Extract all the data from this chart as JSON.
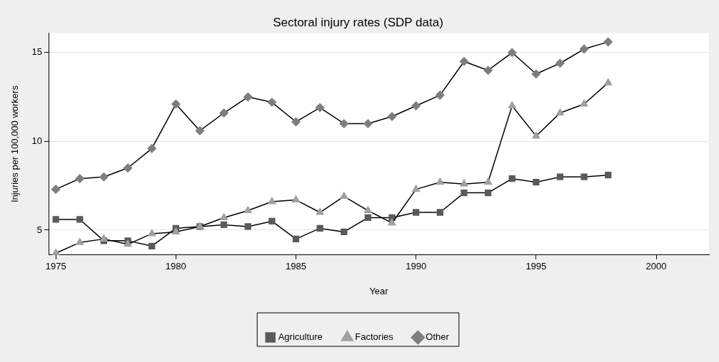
{
  "chart_data": {
    "type": "line",
    "title": "Sectoral injury rates (SDP data)",
    "xlabel": "Year",
    "ylabel": "Injuries per 100,000 workers",
    "x": [
      1975,
      1976,
      1977,
      1978,
      1979,
      1980,
      1981,
      1982,
      1983,
      1984,
      1985,
      1986,
      1987,
      1988,
      1989,
      1990,
      1991,
      1992,
      1993,
      1994,
      1995,
      1996,
      1997,
      1998
    ],
    "series": [
      {
        "name": "Agriculture",
        "color": "#5a5a5a",
        "marker": "square",
        "values": [
          5.6,
          5.6,
          4.4,
          4.4,
          4.1,
          5.1,
          5.2,
          5.3,
          5.2,
          5.5,
          4.5,
          5.1,
          4.9,
          5.7,
          5.7,
          6.0,
          6.0,
          7.1,
          7.1,
          7.9,
          7.7,
          8.0,
          8.0,
          8.1
        ]
      },
      {
        "name": "Factories",
        "color": "#a0a0a0",
        "marker": "triangle",
        "values": [
          3.7,
          4.3,
          4.5,
          4.2,
          4.8,
          4.9,
          5.2,
          5.7,
          6.1,
          6.6,
          6.7,
          6.0,
          6.9,
          6.1,
          5.4,
          7.3,
          7.7,
          7.6,
          7.7,
          12.0,
          10.3,
          11.6,
          12.1,
          13.3
        ]
      },
      {
        "name": "Other",
        "color": "#7e7e7e",
        "marker": "diamond",
        "values": [
          7.3,
          7.9,
          8.0,
          8.5,
          9.6,
          12.1,
          10.6,
          11.6,
          12.5,
          12.2,
          11.1,
          11.9,
          11.0,
          11.0,
          11.4,
          12.0,
          12.6,
          14.5,
          14.0,
          15.0,
          13.8,
          14.4,
          15.2,
          15.6
        ]
      }
    ],
    "xlim": [
      1974.7,
      2002.2
    ],
    "xticks": [
      1975,
      1980,
      1985,
      1990,
      1995,
      2000
    ],
    "ylim": [
      3.6,
      16.1
    ],
    "yticks": [
      5,
      10,
      15
    ],
    "grid": "y",
    "legend": "bottom",
    "line_style": "solid"
  }
}
